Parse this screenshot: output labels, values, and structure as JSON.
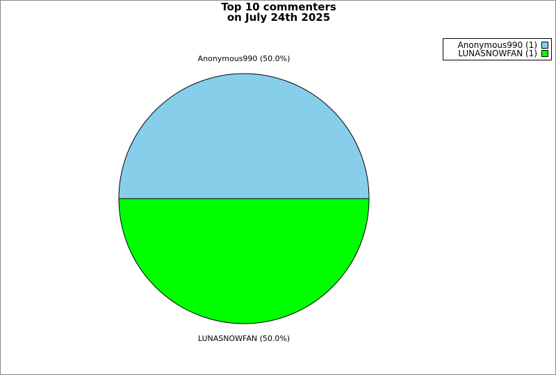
{
  "chart_data": {
    "type": "pie",
    "title": "Top 10 commenters\non July 24th 2025",
    "title_lines": [
      "Top 10 commenters",
      "on July 24th 2025"
    ],
    "slices": [
      {
        "label": "Anonymous990",
        "value": 1,
        "percent_label": "Anonymous990 (50.0%)",
        "legend_label": "Anonymous990 (1)",
        "color": "#87CEEB"
      },
      {
        "label": "LUNASNOWFAN",
        "value": 1,
        "percent_label": "LUNASNOWFAN (50.0%)",
        "legend_label": "LUNASNOWFAN (1)",
        "color": "#00FF00"
      }
    ],
    "legend_position": "top-right"
  }
}
